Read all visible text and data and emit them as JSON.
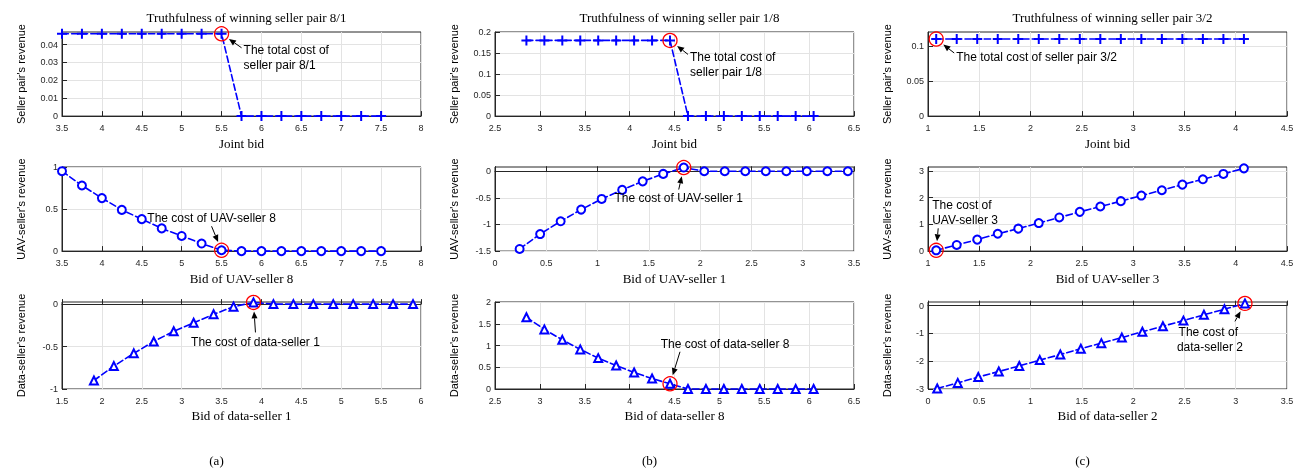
{
  "chart_data": [
    {
      "type": "line",
      "title": "Truthfulness of winning seller pair 8/1",
      "xlabel": "Joint bid",
      "ylabel": "Seller pair's revenue",
      "color": "#0000ff",
      "marker": "cross",
      "line_style": "dashed",
      "grid": true,
      "xlim": [
        3.5,
        8
      ],
      "xticks": [
        3.5,
        4,
        4.5,
        5,
        5.5,
        6,
        6.5,
        7,
        7.5,
        8
      ],
      "ylim": [
        0,
        0.047
      ],
      "yticks": [
        0,
        0.01,
        0.02,
        0.03,
        0.04
      ],
      "x": [
        3.5,
        3.75,
        4,
        4.25,
        4.5,
        4.75,
        5,
        5.25,
        5.5,
        5.75,
        6,
        6.25,
        6.5,
        6.75,
        7,
        7.25,
        7.5
      ],
      "values": [
        0.046,
        0.046,
        0.046,
        0.046,
        0.046,
        0.046,
        0.046,
        0.046,
        0.046,
        0,
        0,
        0,
        0,
        0,
        0,
        0,
        0
      ],
      "annotations": [
        {
          "text": "The total cost of seller pair 8/1",
          "x": 5.5,
          "y": 0.046
        }
      ]
    },
    {
      "type": "line",
      "xlabel": "Bid of UAV-seller 8",
      "ylabel": "UAV-seller's revenue",
      "color": "#0000ff",
      "marker": "circle",
      "line_style": "dashed",
      "grid": true,
      "xlim": [
        3.5,
        8
      ],
      "xticks": [
        3.5,
        4,
        4.5,
        5,
        5.5,
        6,
        6.5,
        7,
        7.5,
        8
      ],
      "ylim": [
        0,
        1
      ],
      "yticks": [
        0,
        0.5,
        1
      ],
      "x": [
        3.5,
        3.75,
        4,
        4.25,
        4.5,
        4.75,
        5,
        5.25,
        5.5,
        5.75,
        6,
        6.25,
        6.5,
        6.75,
        7,
        7.25,
        7.5
      ],
      "values": [
        0.95,
        0.78,
        0.63,
        0.49,
        0.38,
        0.27,
        0.18,
        0.09,
        0.01,
        0,
        0,
        0,
        0,
        0,
        0,
        0,
        0
      ],
      "annotations": [
        {
          "text": "The cost of UAV-seller 8",
          "x": 5.5,
          "y": 0.01
        }
      ]
    },
    {
      "type": "line",
      "xlabel": "Bid of data-seller 1",
      "ylabel": "Data-seller's revenue",
      "color": "#0000ff",
      "marker": "triangle",
      "line_style": "dashed",
      "grid": true,
      "xlim": [
        1.5,
        6
      ],
      "xticks": [
        1.5,
        2,
        2.5,
        3,
        3.5,
        4,
        4.5,
        5,
        5.5,
        6
      ],
      "ylim": [
        -1,
        0.025
      ],
      "yticks": [
        -1,
        -0.5,
        0
      ],
      "x": [
        1.9,
        2.15,
        2.4,
        2.65,
        2.9,
        3.15,
        3.4,
        3.65,
        3.9,
        4.15,
        4.4,
        4.65,
        4.9,
        5.15,
        5.4,
        5.65,
        5.9
      ],
      "values": [
        -0.9,
        -0.73,
        -0.58,
        -0.44,
        -0.32,
        -0.22,
        -0.12,
        -0.03,
        0.02,
        0,
        0,
        0,
        0,
        0,
        0,
        0,
        0
      ],
      "annotations": [
        {
          "text": "The cost of data-seller 1",
          "x": 3.9,
          "y": 0.02
        },
        "(a)"
      ]
    },
    {
      "type": "line",
      "title": "Truthfulness of winning seller pair 1/8",
      "xlabel": "Joint bid",
      "ylabel": "Seller pair's revenue",
      "color": "#0000ff",
      "marker": "cross",
      "line_style": "dashed",
      "grid": true,
      "xlim": [
        2.5,
        6.5
      ],
      "xticks": [
        2.5,
        3,
        3.5,
        4,
        4.5,
        5,
        5.5,
        6,
        6.5
      ],
      "ylim": [
        0,
        0.2
      ],
      "yticks": [
        0,
        0.05,
        0.1,
        0.15,
        0.2
      ],
      "x": [
        2.85,
        3.05,
        3.25,
        3.45,
        3.65,
        3.85,
        4.05,
        4.25,
        4.45,
        4.65,
        4.85,
        5.05,
        5.25,
        5.45,
        5.65,
        5.85,
        6.05
      ],
      "values": [
        0.18,
        0.18,
        0.18,
        0.18,
        0.18,
        0.18,
        0.18,
        0.18,
        0.18,
        0,
        0,
        0,
        0,
        0,
        0,
        0,
        0
      ],
      "annotations": [
        {
          "text": "The total cost of seller pair 1/8",
          "x": 4.45,
          "y": 0.18
        }
      ]
    },
    {
      "type": "line",
      "xlabel": "Bid of UAV-seller 1",
      "ylabel": "UAV-seller's revenue",
      "color": "#0000ff",
      "marker": "circle",
      "line_style": "dashed",
      "grid": true,
      "xlim": [
        0,
        3.5
      ],
      "xticks": [
        0,
        0.5,
        1,
        1.5,
        2,
        2.5,
        3,
        3.5
      ],
      "ylim": [
        -1.5,
        0.08
      ],
      "yticks": [
        -1.5,
        -1,
        -0.5,
        0
      ],
      "x": [
        0.24,
        0.44,
        0.64,
        0.84,
        1.04,
        1.24,
        1.44,
        1.64,
        1.84,
        2.04,
        2.24,
        2.44,
        2.64,
        2.84,
        3.04,
        3.24,
        3.44
      ],
      "values": [
        -1.46,
        -1.18,
        -0.94,
        -0.72,
        -0.52,
        -0.35,
        -0.19,
        -0.05,
        0.07,
        0,
        0,
        0,
        0,
        0,
        0,
        0,
        0
      ],
      "annotations": [
        {
          "text": "The cost of UAV-seller 1",
          "x": 1.84,
          "y": 0.07
        }
      ]
    },
    {
      "type": "line",
      "xlabel": "Bid of data-seller 8",
      "ylabel": "Data-seller's revenue",
      "color": "#0000ff",
      "marker": "triangle",
      "line_style": "dashed",
      "grid": true,
      "xlim": [
        2.5,
        6.5
      ],
      "xticks": [
        2.5,
        3,
        3.5,
        4,
        4.5,
        5,
        5.5,
        6,
        6.5
      ],
      "ylim": [
        0,
        2
      ],
      "yticks": [
        0,
        0.5,
        1,
        1.5,
        2
      ],
      "x": [
        2.85,
        3.05,
        3.25,
        3.45,
        3.65,
        3.85,
        4.05,
        4.25,
        4.45,
        4.65,
        4.85,
        5.05,
        5.25,
        5.45,
        5.65,
        5.85,
        6.05
      ],
      "values": [
        1.65,
        1.37,
        1.13,
        0.91,
        0.71,
        0.54,
        0.38,
        0.24,
        0.12,
        0,
        0,
        0,
        0,
        0,
        0,
        0,
        0
      ],
      "annotations": [
        {
          "text": "The cost of data-seller 8",
          "x": 4.45,
          "y": 0.12
        },
        "(b)"
      ]
    },
    {
      "type": "line",
      "title": "Truthfulness of winning seller pair 3/2",
      "xlabel": "Joint bid",
      "ylabel": "Seller pair's revenue",
      "color": "#0000ff",
      "marker": "cross",
      "line_style": "dashed",
      "grid": true,
      "xlim": [
        1,
        4.5
      ],
      "xticks": [
        1,
        1.5,
        2,
        2.5,
        3,
        3.5,
        4,
        4.5
      ],
      "ylim": [
        0,
        0.12
      ],
      "yticks": [
        0,
        0.05,
        0.1
      ],
      "x": [
        1.08,
        1.28,
        1.48,
        1.68,
        1.88,
        2.08,
        2.28,
        2.48,
        2.68,
        2.88,
        3.08,
        3.28,
        3.48,
        3.68,
        3.88,
        4.08
      ],
      "values": [
        0.11,
        0.11,
        0.11,
        0.11,
        0.11,
        0.11,
        0.11,
        0.11,
        0.11,
        0.11,
        0.11,
        0.11,
        0.11,
        0.11,
        0.11,
        0.11
      ],
      "annotations": [
        {
          "text": "The total cost of seller pair 3/2",
          "x": 1.08,
          "y": 0.11
        }
      ]
    },
    {
      "type": "line",
      "xlabel": "Bid of UAV-seller 3",
      "ylabel": "UAV-seller's revenue",
      "color": "#0000ff",
      "marker": "circle",
      "line_style": "dashed",
      "grid": true,
      "xlim": [
        1,
        4.5
      ],
      "xticks": [
        1,
        1.5,
        2,
        2.5,
        3,
        3.5,
        4,
        4.5
      ],
      "ylim": [
        0,
        3.15
      ],
      "yticks": [
        0,
        1,
        2,
        3
      ],
      "x": [
        1.08,
        1.28,
        1.48,
        1.68,
        1.88,
        2.08,
        2.28,
        2.48,
        2.68,
        2.88,
        3.08,
        3.28,
        3.48,
        3.68,
        3.88,
        4.08
      ],
      "values": [
        0.03,
        0.23,
        0.43,
        0.65,
        0.84,
        1.05,
        1.26,
        1.47,
        1.67,
        1.87,
        2.08,
        2.28,
        2.49,
        2.69,
        2.89,
        3.1
      ],
      "annotations": [
        {
          "text": "The cost of UAV-seller 3",
          "x": 1.08,
          "y": 0.03
        }
      ]
    },
    {
      "type": "line",
      "xlabel": "Bid of data-seller 2",
      "ylabel": "Data-seller's revenue",
      "color": "#0000ff",
      "marker": "triangle",
      "line_style": "dashed",
      "grid": true,
      "xlim": [
        0,
        3.5
      ],
      "xticks": [
        0,
        0.5,
        1,
        1.5,
        2,
        2.5,
        3,
        3.5
      ],
      "ylim": [
        -3,
        0.13
      ],
      "yticks": [
        -3,
        -2,
        -1,
        0
      ],
      "x": [
        0.09,
        0.29,
        0.49,
        0.69,
        0.89,
        1.09,
        1.29,
        1.49,
        1.69,
        1.89,
        2.09,
        2.29,
        2.49,
        2.69,
        2.89,
        3.09
      ],
      "values": [
        -2.98,
        -2.78,
        -2.57,
        -2.37,
        -2.17,
        -1.96,
        -1.76,
        -1.55,
        -1.35,
        -1.15,
        -0.94,
        -0.74,
        -0.54,
        -0.33,
        -0.13,
        0.08
      ],
      "annotations": [
        {
          "text": "The cost of data-seller 2",
          "x": 3.09,
          "y": 0.08
        },
        "(c)"
      ]
    }
  ]
}
